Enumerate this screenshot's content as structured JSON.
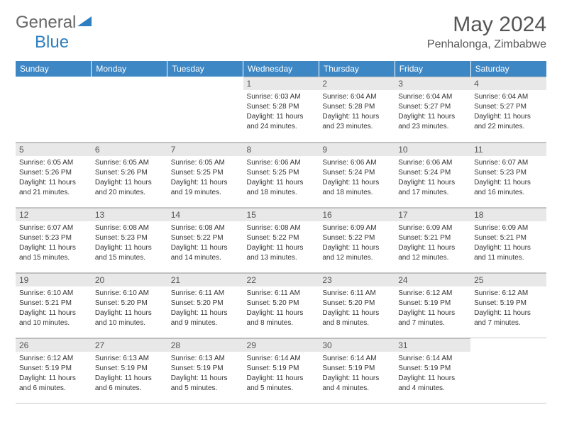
{
  "logo": {
    "text1": "General",
    "text2": "Blue"
  },
  "header": {
    "title": "May 2024",
    "location": "Penhalonga, Zimbabwe"
  },
  "colors": {
    "header_bg": "#3d87c5",
    "header_text": "#ffffff",
    "daynum_bg": "#e8e8e8",
    "text": "#333333",
    "logo_gray": "#666666",
    "logo_blue": "#2d7fc1",
    "border": "#c8c8c8"
  },
  "fonts": {
    "title_pt": 30,
    "location_pt": 16,
    "header_pt": 12,
    "daynum_pt": 12,
    "body_pt": 10
  },
  "daysOfWeek": [
    "Sunday",
    "Monday",
    "Tuesday",
    "Wednesday",
    "Thursday",
    "Friday",
    "Saturday"
  ],
  "weeks": [
    [
      null,
      null,
      null,
      {
        "n": "1",
        "sr": "6:03 AM",
        "ss": "5:28 PM",
        "dl": "11 hours and 24 minutes."
      },
      {
        "n": "2",
        "sr": "6:04 AM",
        "ss": "5:28 PM",
        "dl": "11 hours and 23 minutes."
      },
      {
        "n": "3",
        "sr": "6:04 AM",
        "ss": "5:27 PM",
        "dl": "11 hours and 23 minutes."
      },
      {
        "n": "4",
        "sr": "6:04 AM",
        "ss": "5:27 PM",
        "dl": "11 hours and 22 minutes."
      }
    ],
    [
      {
        "n": "5",
        "sr": "6:05 AM",
        "ss": "5:26 PM",
        "dl": "11 hours and 21 minutes."
      },
      {
        "n": "6",
        "sr": "6:05 AM",
        "ss": "5:26 PM",
        "dl": "11 hours and 20 minutes."
      },
      {
        "n": "7",
        "sr": "6:05 AM",
        "ss": "5:25 PM",
        "dl": "11 hours and 19 minutes."
      },
      {
        "n": "8",
        "sr": "6:06 AM",
        "ss": "5:25 PM",
        "dl": "11 hours and 18 minutes."
      },
      {
        "n": "9",
        "sr": "6:06 AM",
        "ss": "5:24 PM",
        "dl": "11 hours and 18 minutes."
      },
      {
        "n": "10",
        "sr": "6:06 AM",
        "ss": "5:24 PM",
        "dl": "11 hours and 17 minutes."
      },
      {
        "n": "11",
        "sr": "6:07 AM",
        "ss": "5:23 PM",
        "dl": "11 hours and 16 minutes."
      }
    ],
    [
      {
        "n": "12",
        "sr": "6:07 AM",
        "ss": "5:23 PM",
        "dl": "11 hours and 15 minutes."
      },
      {
        "n": "13",
        "sr": "6:08 AM",
        "ss": "5:23 PM",
        "dl": "11 hours and 15 minutes."
      },
      {
        "n": "14",
        "sr": "6:08 AM",
        "ss": "5:22 PM",
        "dl": "11 hours and 14 minutes."
      },
      {
        "n": "15",
        "sr": "6:08 AM",
        "ss": "5:22 PM",
        "dl": "11 hours and 13 minutes."
      },
      {
        "n": "16",
        "sr": "6:09 AM",
        "ss": "5:22 PM",
        "dl": "11 hours and 12 minutes."
      },
      {
        "n": "17",
        "sr": "6:09 AM",
        "ss": "5:21 PM",
        "dl": "11 hours and 12 minutes."
      },
      {
        "n": "18",
        "sr": "6:09 AM",
        "ss": "5:21 PM",
        "dl": "11 hours and 11 minutes."
      }
    ],
    [
      {
        "n": "19",
        "sr": "6:10 AM",
        "ss": "5:21 PM",
        "dl": "11 hours and 10 minutes."
      },
      {
        "n": "20",
        "sr": "6:10 AM",
        "ss": "5:20 PM",
        "dl": "11 hours and 10 minutes."
      },
      {
        "n": "21",
        "sr": "6:11 AM",
        "ss": "5:20 PM",
        "dl": "11 hours and 9 minutes."
      },
      {
        "n": "22",
        "sr": "6:11 AM",
        "ss": "5:20 PM",
        "dl": "11 hours and 8 minutes."
      },
      {
        "n": "23",
        "sr": "6:11 AM",
        "ss": "5:20 PM",
        "dl": "11 hours and 8 minutes."
      },
      {
        "n": "24",
        "sr": "6:12 AM",
        "ss": "5:19 PM",
        "dl": "11 hours and 7 minutes."
      },
      {
        "n": "25",
        "sr": "6:12 AM",
        "ss": "5:19 PM",
        "dl": "11 hours and 7 minutes."
      }
    ],
    [
      {
        "n": "26",
        "sr": "6:12 AM",
        "ss": "5:19 PM",
        "dl": "11 hours and 6 minutes."
      },
      {
        "n": "27",
        "sr": "6:13 AM",
        "ss": "5:19 PM",
        "dl": "11 hours and 6 minutes."
      },
      {
        "n": "28",
        "sr": "6:13 AM",
        "ss": "5:19 PM",
        "dl": "11 hours and 5 minutes."
      },
      {
        "n": "29",
        "sr": "6:14 AM",
        "ss": "5:19 PM",
        "dl": "11 hours and 5 minutes."
      },
      {
        "n": "30",
        "sr": "6:14 AM",
        "ss": "5:19 PM",
        "dl": "11 hours and 4 minutes."
      },
      {
        "n": "31",
        "sr": "6:14 AM",
        "ss": "5:19 PM",
        "dl": "11 hours and 4 minutes."
      },
      null
    ]
  ],
  "labels": {
    "sunrise": "Sunrise:",
    "sunset": "Sunset:",
    "daylight": "Daylight:"
  }
}
